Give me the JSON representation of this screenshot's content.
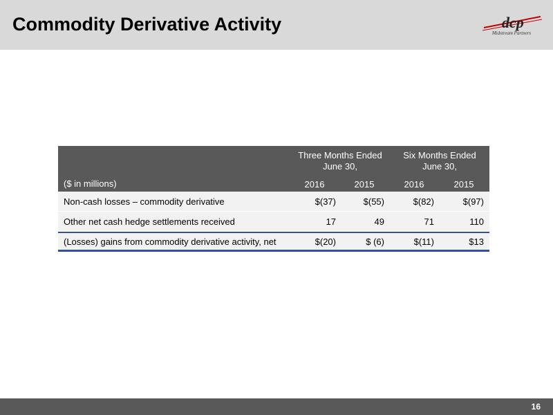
{
  "header": {
    "title": "Commodity Derivative Activity",
    "logo_mark": "dcp",
    "logo_text": "Midstream Partners"
  },
  "table": {
    "units_label": "($ in millions)",
    "groups": [
      {
        "line1": "Three Months Ended",
        "line2": "June 30,"
      },
      {
        "line1": "Six Months Ended",
        "line2": "June 30,"
      }
    ],
    "years": [
      "2016",
      "2015",
      "2016",
      "2015"
    ],
    "rows": [
      {
        "label": "Non-cash losses – commodity derivative",
        "values": [
          "$(37)",
          "$(55)",
          "$(82)",
          "$(97)"
        ]
      },
      {
        "label": "Other net cash hedge settlements received",
        "values": [
          "17",
          "49",
          "71",
          "110"
        ]
      },
      {
        "label": "(Losses) gains from commodity derivative activity, net",
        "values": [
          "$(20)",
          "$ (6)",
          "$(11)",
          "$13"
        ]
      }
    ]
  },
  "footer": {
    "page_number": "16"
  },
  "colors": {
    "header_bg": "#d9d9d9",
    "table_header_bg": "#595959",
    "total_rule": "#2f4fa8",
    "logo_red": "#c00000"
  }
}
